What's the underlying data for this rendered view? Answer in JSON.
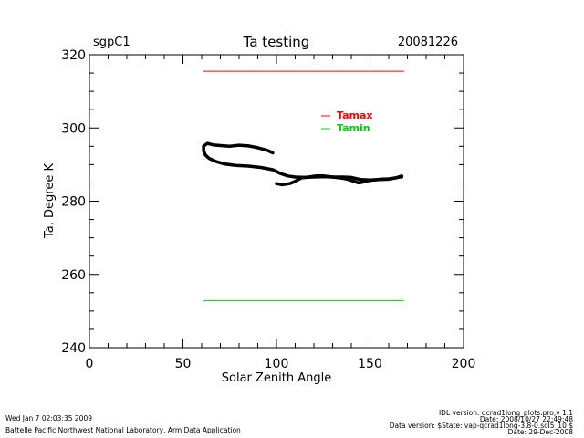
{
  "header": {
    "site": "sgpC1",
    "title": "Ta testing",
    "date": "20081226"
  },
  "chart_data": {
    "type": "line",
    "title": "Ta testing",
    "xlabel": "Solar Zenith Angle",
    "ylabel": "Ta, Degree K",
    "xlim": [
      0,
      200
    ],
    "ylim": [
      240,
      320
    ],
    "xticks": [
      0,
      50,
      100,
      150,
      200
    ],
    "yticks": [
      240,
      260,
      280,
      300,
      320
    ],
    "legend_position": "top-right-inside",
    "series": [
      {
        "name": "Ta",
        "color": "#000000",
        "x": [
          98,
          95,
          90,
          85,
          80,
          75,
          70,
          66,
          63,
          61,
          61,
          62,
          64,
          68,
          72,
          78,
          85,
          92,
          98,
          102,
          106,
          110,
          115,
          120,
          125,
          130,
          135,
          138,
          141,
          144,
          146,
          148,
          152,
          156,
          160,
          164,
          167
        ],
        "y": [
          293.2,
          293.9,
          294.6,
          295.1,
          295.3,
          295.0,
          295.2,
          295.4,
          295.8,
          295.0,
          293.8,
          292.6,
          291.7,
          290.8,
          290.2,
          289.8,
          289.6,
          289.2,
          288.6,
          287.6,
          286.9,
          286.6,
          286.5,
          286.6,
          286.7,
          286.6,
          286.3,
          286.0,
          285.5,
          285.0,
          285.2,
          285.5,
          285.8,
          286.0,
          286.1,
          286.4,
          286.7
        ]
      },
      {
        "name": "Ta",
        "color": "#000000",
        "x": [
          100,
          103,
          107,
          110,
          113,
          117,
          121,
          125,
          130,
          135,
          140,
          145,
          150,
          155,
          160,
          164,
          167
        ],
        "y": [
          284.8,
          284.5,
          284.8,
          285.4,
          286.3,
          286.6,
          286.9,
          286.9,
          286.6,
          286.6,
          286.5,
          285.9,
          285.8,
          285.9,
          286.0,
          286.4,
          286.9
        ]
      },
      {
        "name": "Tamax",
        "color": "#ff0000",
        "x": [
          61,
          168
        ],
        "y": [
          315.5,
          315.5
        ]
      },
      {
        "name": "Tamin",
        "color": "#00d000",
        "x": [
          61,
          168
        ],
        "y": [
          252.8,
          252.8
        ]
      }
    ],
    "legend": [
      {
        "label": "Tamax",
        "color": "#ff0000"
      },
      {
        "label": "Tamin",
        "color": "#00d000"
      }
    ]
  },
  "footer": {
    "timestamp": "Wed Jan  7 02:03:35 2009",
    "lab": "Battelle Pacific Northwest National Laboratory, Arm Data Application",
    "idl_version": "IDL version: qcrad1long_plots.pro,v 1.1",
    "code_date": "Date: 2008/10/27 22:49:48",
    "data_version": "Data version: $State: vap-qcrad1long-3.8-0.sol5_10 $",
    "data_date": "Date: 29-Dec-2008"
  }
}
